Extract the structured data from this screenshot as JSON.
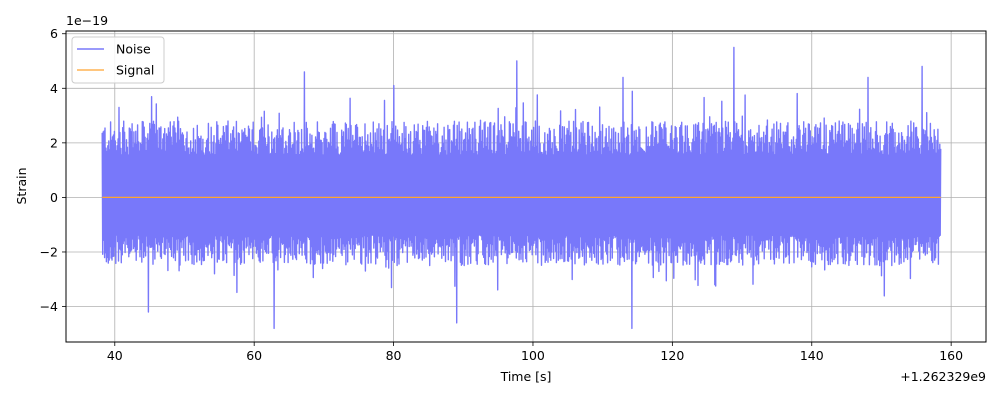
{
  "chart_data": {
    "type": "line",
    "xlabel": "Time [s]",
    "ylabel": "Strain",
    "x_offset_label": "+1.262329e9",
    "y_exponent_label": "1e−19",
    "xlim": [
      33,
      165
    ],
    "ylim": [
      -5.3,
      6.1
    ],
    "x_ticks": [
      40,
      60,
      80,
      100,
      120,
      140,
      160
    ],
    "x_tick_labels": [
      "40",
      "60",
      "80",
      "100",
      "120",
      "140",
      "160"
    ],
    "y_ticks": [
      -4,
      -2,
      0,
      2,
      4,
      6
    ],
    "y_tick_labels": [
      "−4",
      "−2",
      "0",
      "2",
      "4",
      "6"
    ],
    "grid": true,
    "legend_position": "top-left",
    "series": [
      {
        "name": "Noise",
        "color": "#7878fa",
        "x_range": [
          38.2,
          158.5
        ],
        "typical_envelope": [
          -2.5,
          2.8
        ],
        "max": 5.5,
        "min": -4.8,
        "peaks": [
          {
            "x": 44.8,
            "y": -4.2
          },
          {
            "x": 62.9,
            "y": -4.8
          },
          {
            "x": 67.2,
            "y": 4.6
          },
          {
            "x": 80.0,
            "y": 4.1
          },
          {
            "x": 89.0,
            "y": -4.6
          },
          {
            "x": 97.7,
            "y": 5.0
          },
          {
            "x": 112.9,
            "y": 4.4
          },
          {
            "x": 114.2,
            "y": -4.8
          },
          {
            "x": 128.8,
            "y": 5.5
          },
          {
            "x": 148.1,
            "y": 4.4
          },
          {
            "x": 155.8,
            "y": 4.8
          }
        ]
      },
      {
        "name": "Signal",
        "color": "#ffa530",
        "x": [
          38.2,
          158.5
        ],
        "y": [
          0,
          0
        ]
      }
    ]
  }
}
